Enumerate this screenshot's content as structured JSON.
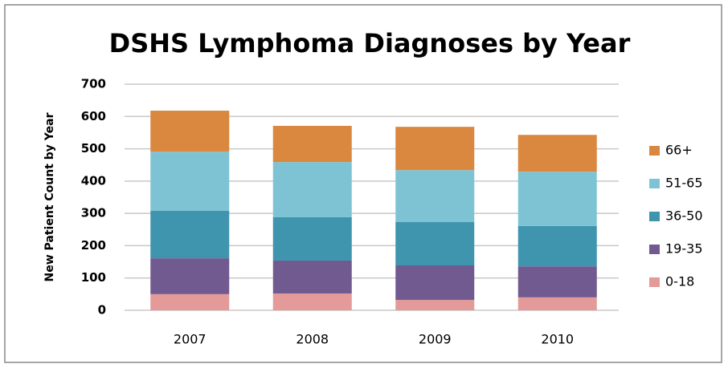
{
  "chart_data": {
    "type": "stacked_bar",
    "title": "DSHS Lymphoma Diagnoses by Year",
    "y_label": "New Patient Count by Year",
    "categories": [
      "2007",
      "2008",
      "2009",
      "2010"
    ],
    "series": [
      {
        "name": "0-18",
        "color": "#e39a98",
        "values": [
          50,
          52,
          32,
          40
        ]
      },
      {
        "name": "19-35",
        "color": "#715a8f",
        "values": [
          111,
          102,
          107,
          96
        ]
      },
      {
        "name": "36-50",
        "color": "#3f94ae",
        "values": [
          147,
          134,
          134,
          125
        ]
      },
      {
        "name": "51-65",
        "color": "#7ec3d4",
        "values": [
          183,
          171,
          161,
          168
        ]
      },
      {
        "name": "66+",
        "color": "#da873f",
        "values": [
          127,
          112,
          134,
          114
        ]
      }
    ],
    "ylim": [
      0,
      700
    ],
    "yticks": [
      0,
      100,
      200,
      300,
      400,
      500,
      600,
      700
    ],
    "grid": true,
    "legend": "right"
  }
}
